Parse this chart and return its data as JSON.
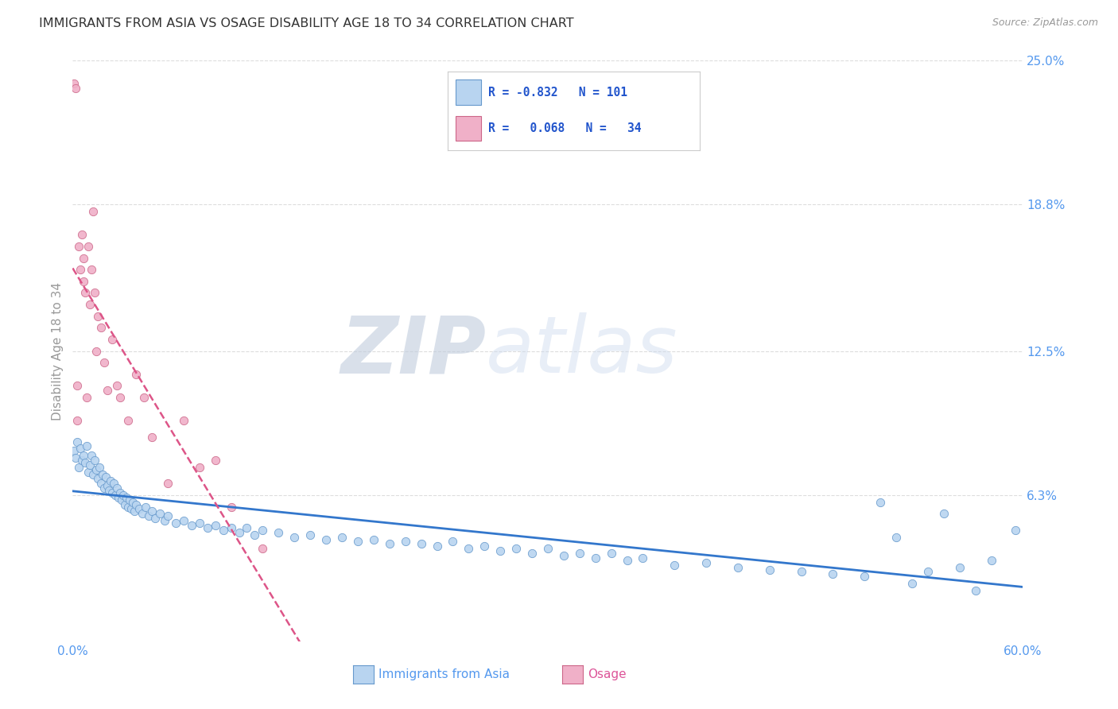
{
  "title": "IMMIGRANTS FROM ASIA VS OSAGE DISABILITY AGE 18 TO 34 CORRELATION CHART",
  "source": "Source: ZipAtlas.com",
  "ylabel": "Disability Age 18 to 34",
  "xlim": [
    0.0,
    0.6
  ],
  "ylim": [
    0.0,
    0.25
  ],
  "xtick_labels": [
    "0.0%",
    "60.0%"
  ],
  "xtick_positions": [
    0.0,
    0.6
  ],
  "ytick_labels": [
    "6.3%",
    "12.5%",
    "18.8%",
    "25.0%"
  ],
  "ytick_positions": [
    0.063,
    0.125,
    0.188,
    0.25
  ],
  "grid_color": "#dddddd",
  "background_color": "#ffffff",
  "watermark_zip": "ZIP",
  "watermark_atlas": "atlas",
  "legend_color": "#2255cc",
  "title_color": "#333333",
  "title_fontsize": 11.5,
  "axis_label_color": "#999999",
  "tick_color": "#5599ee",
  "blue_scatter_color": "#b8d4f0",
  "blue_edge_color": "#6699cc",
  "blue_line_color": "#3377cc",
  "pink_scatter_color": "#f0b0c8",
  "pink_edge_color": "#cc6688",
  "pink_line_color": "#dd5588",
  "asia_R": -0.832,
  "asia_N": 101,
  "osage_R": 0.068,
  "osage_N": 34,
  "asia_x": [
    0.001,
    0.002,
    0.003,
    0.004,
    0.005,
    0.006,
    0.007,
    0.008,
    0.009,
    0.01,
    0.011,
    0.012,
    0.013,
    0.014,
    0.015,
    0.016,
    0.017,
    0.018,
    0.019,
    0.02,
    0.021,
    0.022,
    0.023,
    0.024,
    0.025,
    0.026,
    0.027,
    0.028,
    0.029,
    0.03,
    0.031,
    0.032,
    0.033,
    0.034,
    0.035,
    0.036,
    0.037,
    0.038,
    0.039,
    0.04,
    0.042,
    0.044,
    0.046,
    0.048,
    0.05,
    0.052,
    0.055,
    0.058,
    0.06,
    0.065,
    0.07,
    0.075,
    0.08,
    0.085,
    0.09,
    0.095,
    0.1,
    0.105,
    0.11,
    0.115,
    0.12,
    0.13,
    0.14,
    0.15,
    0.16,
    0.17,
    0.18,
    0.19,
    0.2,
    0.21,
    0.22,
    0.23,
    0.24,
    0.25,
    0.26,
    0.27,
    0.28,
    0.29,
    0.3,
    0.31,
    0.32,
    0.33,
    0.34,
    0.35,
    0.36,
    0.38,
    0.4,
    0.42,
    0.44,
    0.46,
    0.48,
    0.5,
    0.51,
    0.52,
    0.53,
    0.54,
    0.55,
    0.56,
    0.57,
    0.58,
    0.595
  ],
  "asia_y": [
    0.082,
    0.079,
    0.086,
    0.075,
    0.083,
    0.078,
    0.08,
    0.077,
    0.084,
    0.073,
    0.076,
    0.08,
    0.072,
    0.078,
    0.074,
    0.07,
    0.075,
    0.068,
    0.072,
    0.066,
    0.071,
    0.067,
    0.065,
    0.069,
    0.064,
    0.068,
    0.063,
    0.066,
    0.062,
    0.064,
    0.061,
    0.063,
    0.059,
    0.062,
    0.058,
    0.061,
    0.057,
    0.06,
    0.056,
    0.059,
    0.057,
    0.055,
    0.058,
    0.054,
    0.056,
    0.053,
    0.055,
    0.052,
    0.054,
    0.051,
    0.052,
    0.05,
    0.051,
    0.049,
    0.05,
    0.048,
    0.049,
    0.047,
    0.049,
    0.046,
    0.048,
    0.047,
    0.045,
    0.046,
    0.044,
    0.045,
    0.043,
    0.044,
    0.042,
    0.043,
    0.042,
    0.041,
    0.043,
    0.04,
    0.041,
    0.039,
    0.04,
    0.038,
    0.04,
    0.037,
    0.038,
    0.036,
    0.038,
    0.035,
    0.036,
    0.033,
    0.034,
    0.032,
    0.031,
    0.03,
    0.029,
    0.028,
    0.06,
    0.045,
    0.025,
    0.03,
    0.055,
    0.032,
    0.022,
    0.035,
    0.048
  ],
  "osage_x": [
    0.001,
    0.002,
    0.003,
    0.003,
    0.004,
    0.005,
    0.006,
    0.007,
    0.007,
    0.008,
    0.009,
    0.01,
    0.011,
    0.012,
    0.013,
    0.014,
    0.015,
    0.016,
    0.018,
    0.02,
    0.022,
    0.025,
    0.028,
    0.03,
    0.035,
    0.04,
    0.045,
    0.05,
    0.06,
    0.07,
    0.08,
    0.09,
    0.1,
    0.12
  ],
  "osage_y": [
    0.24,
    0.238,
    0.095,
    0.11,
    0.17,
    0.16,
    0.175,
    0.155,
    0.165,
    0.15,
    0.105,
    0.17,
    0.145,
    0.16,
    0.185,
    0.15,
    0.125,
    0.14,
    0.135,
    0.12,
    0.108,
    0.13,
    0.11,
    0.105,
    0.095,
    0.115,
    0.105,
    0.088,
    0.068,
    0.095,
    0.075,
    0.078,
    0.058,
    0.04
  ]
}
